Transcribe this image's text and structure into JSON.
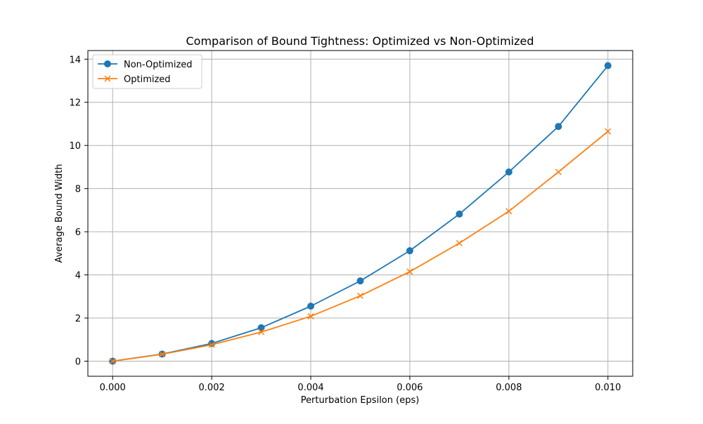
{
  "chart_data": {
    "type": "line",
    "title": "Comparison of Bound Tightness: Optimized vs Non-Optimized",
    "xlabel": "Perturbation Epsilon (eps)",
    "ylabel": "Average Bound Width",
    "xlim": [
      -0.0005,
      0.0105
    ],
    "ylim": [
      -0.7,
      14.4
    ],
    "grid": true,
    "legend_position": "top-left",
    "x": [
      0.0,
      0.001,
      0.002,
      0.003,
      0.004,
      0.005,
      0.006,
      0.007,
      0.008,
      0.009,
      0.01
    ],
    "x_ticks": [
      0.0,
      0.002,
      0.004,
      0.006,
      0.008,
      0.01
    ],
    "x_tick_labels": [
      "0.000",
      "0.002",
      "0.004",
      "0.006",
      "0.008",
      "0.010"
    ],
    "y_ticks": [
      0,
      2,
      4,
      6,
      8,
      10,
      12,
      14
    ],
    "y_tick_labels": [
      "0",
      "2",
      "4",
      "6",
      "8",
      "10",
      "12",
      "14"
    ],
    "series": [
      {
        "name": "Non-Optimized",
        "color": "#1f77b4",
        "marker": "circle",
        "values": [
          0.0,
          0.33,
          0.82,
          1.55,
          2.55,
          3.72,
          5.12,
          6.82,
          8.77,
          10.88,
          13.7
        ]
      },
      {
        "name": "Optimized",
        "color": "#ff7f0e",
        "marker": "x",
        "values": [
          0.0,
          0.32,
          0.76,
          1.35,
          2.08,
          3.03,
          4.15,
          5.47,
          6.95,
          8.77,
          10.65
        ]
      }
    ]
  }
}
